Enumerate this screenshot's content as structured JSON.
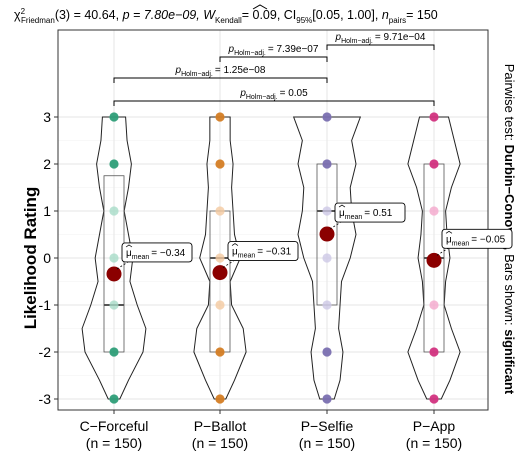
{
  "chart_data": {
    "type": "violin",
    "subtitle_html_parts": {
      "chi": "χ",
      "chi_sup": "2",
      "chi_sub": "Friedman",
      "chi_rest": "(3) = 40.64,",
      "p_part": "p = 7.80e−09,",
      "w_hat": "W",
      "w_sub": "Kendall",
      "w_rest": "= 0.09, CI",
      "ci_sub": "95%",
      "ci_rest": "[0.05, 1.00],",
      "n_var": "n",
      "n_sub": "pairs",
      "n_rest": "= 150"
    },
    "ylabel": "Likelihood Rating",
    "ylim": [
      -3,
      3
    ],
    "yticks": [
      -3,
      -2,
      -1,
      0,
      1,
      2,
      3
    ],
    "right_caption": {
      "part1": "Pairwise test: ",
      "part2": "Durbin−Conover",
      "part3": ", Bars shown: ",
      "part4": "significant"
    },
    "groups": [
      {
        "name": "C−Forceful",
        "n_label": "(n = 150)",
        "color": "#2e9e78",
        "light": "#a8dcc8",
        "mean": -0.34,
        "mean_label": "= −0.34",
        "median": -1,
        "q1": -2,
        "q3": 1.75,
        "points": [
          -3,
          -2,
          -1,
          0,
          1,
          2,
          3
        ]
      },
      {
        "name": "P−Ballot",
        "n_label": "(n = 150)",
        "color": "#d47d24",
        "light": "#f4c9a0",
        "mean": -0.31,
        "mean_label": "= −0.31",
        "median": 0,
        "q1": -2,
        "q3": 1,
        "points": [
          -3,
          -2,
          -1,
          0,
          1,
          2,
          3
        ]
      },
      {
        "name": "P−Selfie",
        "n_label": "(n = 150)",
        "color": "#7a6fb0",
        "light": "#cdc8e6",
        "mean": 0.51,
        "mean_label": "= 0.51",
        "median": 1,
        "q1": -1,
        "q3": 2,
        "points": [
          -3,
          -2,
          -1,
          0,
          1,
          2,
          3
        ]
      },
      {
        "name": "P−App",
        "n_label": "(n = 150)",
        "color": "#d2337f",
        "light": "#f4a8cc",
        "mean": -0.05,
        "mean_label": "= −0.05",
        "median": 0,
        "q1": -2,
        "q3": 2,
        "points": [
          -3,
          -2,
          -1,
          0,
          1,
          2,
          3
        ]
      }
    ],
    "mean_symbol": "μ",
    "mean_sub": "mean",
    "comparisons": [
      {
        "from": 0,
        "to": 3,
        "p_label": "0.05"
      },
      {
        "from": 0,
        "to": 2,
        "p_label": "1.25e−08"
      },
      {
        "from": 1,
        "to": 2,
        "p_label": "7.39e−07"
      },
      {
        "from": 2,
        "to": 3,
        "p_label": "9.71e−04"
      }
    ],
    "p_label_prefix": "p",
    "p_label_sub": "Holm−adj.",
    "p_label_eq": "= ",
    "grid": true,
    "legend": "none",
    "mean_color": "#8b0000"
  }
}
